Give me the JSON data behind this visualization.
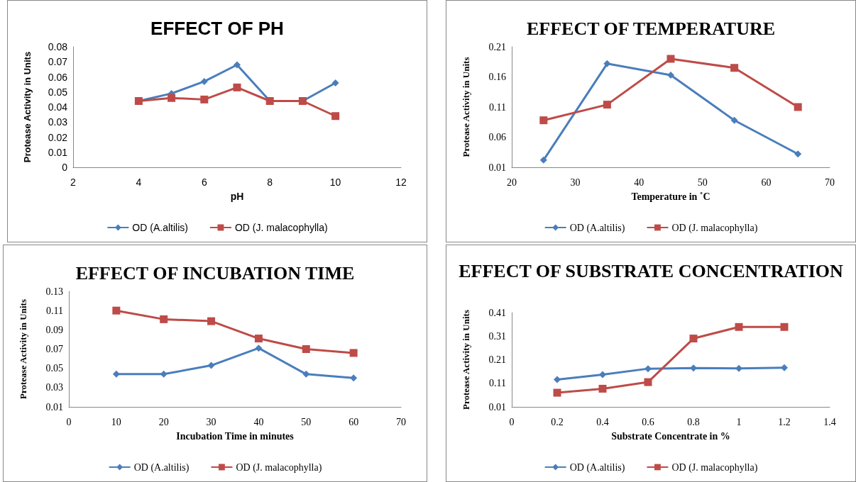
{
  "chart_data": [
    {
      "type": "line",
      "title": "EFFECT OF PH",
      "xlabel": "pH",
      "ylabel": "Protease Activity in Units",
      "x": [
        4,
        5,
        6,
        7,
        8,
        9,
        10
      ],
      "xlim": [
        2,
        12
      ],
      "xticks": [
        2,
        4,
        6,
        8,
        10,
        12
      ],
      "ylim": [
        0,
        0.08
      ],
      "yticks": [
        0,
        0.01,
        0.02,
        0.03,
        0.04,
        0.05,
        0.06,
        0.07,
        0.08
      ],
      "legend": "bottom",
      "grid": false,
      "series": [
        {
          "name": "OD (A.altilis)",
          "color": "#4a7ebb",
          "marker": "diamond",
          "values": [
            0.044,
            0.049,
            0.057,
            0.068,
            0.044,
            0.044,
            0.056
          ]
        },
        {
          "name": "OD (J. malacophylla)",
          "color": "#be4b48",
          "marker": "square",
          "values": [
            0.044,
            0.046,
            0.045,
            0.053,
            0.044,
            0.044,
            0.034
          ]
        }
      ]
    },
    {
      "type": "line",
      "title": "EFFECT OF TEMPERATURE",
      "xlabel": "Temperature in ˚C",
      "ylabel": "Protease Activity in Units",
      "x": [
        25,
        35,
        45,
        55,
        65
      ],
      "xlim": [
        20,
        70
      ],
      "xticks": [
        20,
        30,
        40,
        50,
        60,
        70
      ],
      "ylim": [
        0.01,
        0.21
      ],
      "yticks": [
        0.01,
        0.06,
        0.11,
        0.16,
        0.21
      ],
      "legend": "bottom",
      "grid": false,
      "series": [
        {
          "name": "OD (A.altilis)",
          "color": "#4a7ebb",
          "marker": "diamond",
          "values": [
            0.022,
            0.182,
            0.163,
            0.088,
            0.032
          ]
        },
        {
          "name": "OD (J. malacophylla)",
          "color": "#be4b48",
          "marker": "square",
          "values": [
            0.088,
            0.114,
            0.19,
            0.175,
            0.11
          ]
        }
      ]
    },
    {
      "type": "line",
      "title": "EFFECT OF INCUBATION TIME",
      "xlabel": "Incubation Time in minutes",
      "ylabel": "Protease Activity in Units",
      "x": [
        10,
        20,
        30,
        40,
        50,
        60
      ],
      "xlim": [
        0,
        70
      ],
      "xticks": [
        0,
        10,
        20,
        30,
        40,
        50,
        60,
        70
      ],
      "ylim": [
        0.01,
        0.13
      ],
      "yticks": [
        0.01,
        0.03,
        0.05,
        0.07,
        0.09,
        0.11,
        0.13
      ],
      "legend": "bottom",
      "grid": false,
      "series": [
        {
          "name": "OD (A.altilis)",
          "color": "#4a7ebb",
          "marker": "diamond",
          "values": [
            0.044,
            0.044,
            0.053,
            0.071,
            0.044,
            0.04
          ]
        },
        {
          "name": "OD (J. malacophylla)",
          "color": "#be4b48",
          "marker": "square",
          "values": [
            0.11,
            0.101,
            0.099,
            0.081,
            0.07,
            0.066
          ]
        }
      ]
    },
    {
      "type": "line",
      "title": "EFFECT OF SUBSTRATE CONCENTRATION",
      "xlabel": "Substrate Concentrate in %",
      "ylabel": "Protease Activity in Units",
      "x": [
        0.2,
        0.4,
        0.6,
        0.8,
        1,
        1.2
      ],
      "xlim": [
        0,
        1.4
      ],
      "xticks": [
        0,
        0.2,
        0.4,
        0.6,
        0.8,
        1,
        1.2,
        1.4
      ],
      "ylim": [
        0.01,
        0.41
      ],
      "yticks": [
        0.01,
        0.11,
        0.21,
        0.31,
        0.41
      ],
      "legend": "bottom",
      "grid": false,
      "series": [
        {
          "name": "OD (A.altilis)",
          "color": "#4a7ebb",
          "marker": "diamond",
          "values": [
            0.126,
            0.147,
            0.172,
            0.175,
            0.173,
            0.176
          ]
        },
        {
          "name": "OD (J. malacophylla)",
          "color": "#be4b48",
          "marker": "square",
          "values": [
            0.07,
            0.087,
            0.115,
            0.3,
            0.349,
            0.349
          ]
        }
      ]
    }
  ]
}
